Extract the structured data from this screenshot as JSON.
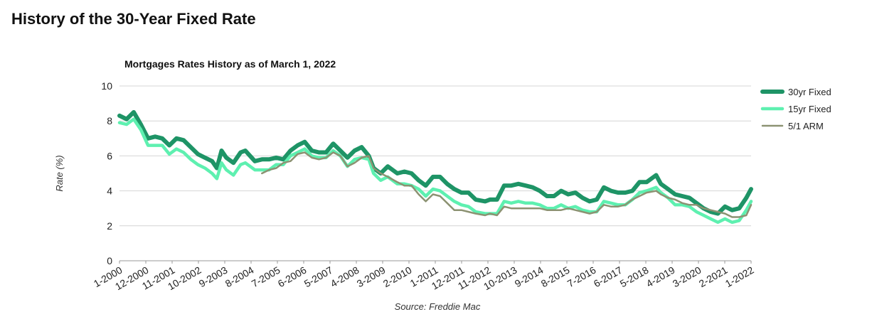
{
  "page": {
    "title": "History of the 30-Year Fixed Rate"
  },
  "chart_data": {
    "type": "line",
    "title": "Mortgages Rates History as of March 1, 2022",
    "ylabel": "Rate (%)",
    "xlabel": "",
    "source": "Source: Freddie Mac",
    "ylim": [
      0,
      10
    ],
    "yticks": [
      0,
      2,
      4,
      6,
      8,
      10
    ],
    "grid": true,
    "legend_position": "right",
    "x_tick_labels": [
      "1-2000",
      "12-2000",
      "11-2001",
      "10-2002",
      "9-2003",
      "8-2004",
      "7-2005",
      "6-2006",
      "5-2007",
      "4-2008",
      "3-2009",
      "2-2010",
      "1-2011",
      "12-2011",
      "11-2012",
      "10-2013",
      "9-2014",
      "8-2015",
      "7-2016",
      "6-2017",
      "5-2018",
      "4-2019",
      "3-2020",
      "2-2021",
      "1-2022"
    ],
    "x_range": [
      "2000-01",
      "2022-03"
    ],
    "series": [
      {
        "name": "30yr Fixed",
        "color": "#1e9466",
        "x": [
          "2000-01",
          "2000-04",
          "2000-07",
          "2000-10",
          "2001-01",
          "2001-04",
          "2001-07",
          "2001-10",
          "2002-01",
          "2002-04",
          "2002-07",
          "2002-10",
          "2003-01",
          "2003-04",
          "2003-06",
          "2003-08",
          "2003-10",
          "2004-01",
          "2004-04",
          "2004-06",
          "2004-10",
          "2005-01",
          "2005-04",
          "2005-07",
          "2005-10",
          "2006-01",
          "2006-04",
          "2006-07",
          "2006-10",
          "2007-01",
          "2007-04",
          "2007-07",
          "2007-10",
          "2008-01",
          "2008-04",
          "2008-07",
          "2008-10",
          "2008-12",
          "2009-03",
          "2009-06",
          "2009-10",
          "2010-01",
          "2010-04",
          "2010-07",
          "2010-10",
          "2011-01",
          "2011-04",
          "2011-07",
          "2011-10",
          "2012-01",
          "2012-04",
          "2012-07",
          "2012-11",
          "2013-01",
          "2013-04",
          "2013-07",
          "2013-10",
          "2014-01",
          "2014-04",
          "2014-07",
          "2014-10",
          "2015-01",
          "2015-04",
          "2015-07",
          "2015-10",
          "2016-01",
          "2016-04",
          "2016-07",
          "2016-10",
          "2017-01",
          "2017-04",
          "2017-07",
          "2017-10",
          "2018-01",
          "2018-04",
          "2018-07",
          "2018-11",
          "2019-01",
          "2019-04",
          "2019-07",
          "2019-10",
          "2020-01",
          "2020-04",
          "2020-07",
          "2020-10",
          "2021-01",
          "2021-04",
          "2021-07",
          "2021-10",
          "2022-01",
          "2022-03"
        ],
        "values": [
          8.3,
          8.1,
          8.5,
          7.8,
          7.0,
          7.1,
          7.0,
          6.6,
          7.0,
          6.9,
          6.5,
          6.1,
          5.9,
          5.7,
          5.3,
          6.3,
          5.9,
          5.6,
          6.2,
          6.3,
          5.7,
          5.8,
          5.8,
          5.9,
          5.8,
          6.3,
          6.6,
          6.8,
          6.3,
          6.2,
          6.2,
          6.7,
          6.3,
          5.9,
          6.3,
          6.5,
          6.0,
          5.3,
          5.0,
          5.4,
          5.0,
          5.1,
          5.0,
          4.6,
          4.3,
          4.8,
          4.8,
          4.4,
          4.1,
          3.9,
          3.9,
          3.5,
          3.4,
          3.5,
          3.5,
          4.3,
          4.3,
          4.4,
          4.3,
          4.2,
          4.0,
          3.7,
          3.7,
          4.0,
          3.8,
          3.9,
          3.6,
          3.4,
          3.5,
          4.2,
          4.0,
          3.9,
          3.9,
          4.0,
          4.5,
          4.5,
          4.9,
          4.4,
          4.1,
          3.8,
          3.7,
          3.6,
          3.3,
          3.0,
          2.8,
          2.7,
          3.1,
          2.9,
          3.0,
          3.6,
          4.1
        ]
      },
      {
        "name": "15yr Fixed",
        "color": "#5ef0b0",
        "x": [
          "2000-01",
          "2000-04",
          "2000-07",
          "2000-10",
          "2001-01",
          "2001-04",
          "2001-07",
          "2001-10",
          "2002-01",
          "2002-04",
          "2002-07",
          "2002-10",
          "2003-01",
          "2003-04",
          "2003-06",
          "2003-08",
          "2003-10",
          "2004-01",
          "2004-04",
          "2004-06",
          "2004-10",
          "2005-01",
          "2005-04",
          "2005-07",
          "2005-10",
          "2006-01",
          "2006-04",
          "2006-07",
          "2006-10",
          "2007-01",
          "2007-04",
          "2007-07",
          "2007-10",
          "2008-01",
          "2008-04",
          "2008-07",
          "2008-10",
          "2008-12",
          "2009-03",
          "2009-06",
          "2009-10",
          "2010-01",
          "2010-04",
          "2010-07",
          "2010-10",
          "2011-01",
          "2011-04",
          "2011-07",
          "2011-10",
          "2012-01",
          "2012-04",
          "2012-07",
          "2012-11",
          "2013-01",
          "2013-04",
          "2013-07",
          "2013-10",
          "2014-01",
          "2014-04",
          "2014-07",
          "2014-10",
          "2015-01",
          "2015-04",
          "2015-07",
          "2015-10",
          "2016-01",
          "2016-04",
          "2016-07",
          "2016-10",
          "2017-01",
          "2017-04",
          "2017-07",
          "2017-10",
          "2018-01",
          "2018-04",
          "2018-07",
          "2018-11",
          "2019-01",
          "2019-04",
          "2019-07",
          "2019-10",
          "2020-01",
          "2020-04",
          "2020-07",
          "2020-10",
          "2021-01",
          "2021-04",
          "2021-07",
          "2021-10",
          "2022-01",
          "2022-03"
        ],
        "values": [
          7.9,
          7.8,
          8.1,
          7.5,
          6.6,
          6.6,
          6.6,
          6.1,
          6.4,
          6.2,
          5.8,
          5.5,
          5.3,
          5.0,
          4.7,
          5.6,
          5.2,
          4.9,
          5.5,
          5.6,
          5.2,
          5.2,
          5.2,
          5.5,
          5.5,
          6.0,
          6.2,
          6.4,
          6.0,
          5.9,
          5.9,
          6.3,
          6.0,
          5.4,
          5.8,
          5.9,
          5.8,
          5.0,
          4.6,
          4.8,
          4.4,
          4.4,
          4.3,
          4.1,
          3.7,
          4.1,
          4.0,
          3.7,
          3.4,
          3.2,
          3.1,
          2.8,
          2.7,
          2.7,
          2.7,
          3.4,
          3.3,
          3.4,
          3.3,
          3.3,
          3.2,
          3.0,
          3.0,
          3.2,
          3.0,
          3.1,
          2.9,
          2.8,
          2.8,
          3.4,
          3.3,
          3.2,
          3.2,
          3.5,
          3.9,
          4.0,
          4.2,
          3.9,
          3.6,
          3.2,
          3.2,
          3.1,
          2.8,
          2.6,
          2.4,
          2.2,
          2.4,
          2.2,
          2.3,
          2.9,
          3.4
        ]
      },
      {
        "name": "5/1 ARM",
        "color": "#8c9272",
        "x": [
          "2005-01",
          "2005-04",
          "2005-07",
          "2005-10",
          "2006-01",
          "2006-04",
          "2006-07",
          "2006-10",
          "2007-01",
          "2007-04",
          "2007-07",
          "2007-10",
          "2008-01",
          "2008-04",
          "2008-07",
          "2008-10",
          "2008-12",
          "2009-03",
          "2009-06",
          "2009-10",
          "2010-01",
          "2010-04",
          "2010-07",
          "2010-10",
          "2011-01",
          "2011-04",
          "2011-07",
          "2011-10",
          "2012-01",
          "2012-04",
          "2012-07",
          "2012-11",
          "2013-01",
          "2013-04",
          "2013-07",
          "2013-10",
          "2014-01",
          "2014-04",
          "2014-07",
          "2014-10",
          "2015-01",
          "2015-04",
          "2015-07",
          "2015-10",
          "2016-01",
          "2016-04",
          "2016-07",
          "2016-10",
          "2017-01",
          "2017-04",
          "2017-07",
          "2017-10",
          "2018-01",
          "2018-04",
          "2018-07",
          "2018-11",
          "2019-01",
          "2019-04",
          "2019-07",
          "2019-10",
          "2020-01",
          "2020-04",
          "2020-07",
          "2020-10",
          "2021-01",
          "2021-04",
          "2021-07",
          "2021-10",
          "2022-01",
          "2022-03"
        ],
        "values": [
          5.0,
          5.2,
          5.3,
          5.6,
          5.7,
          6.1,
          6.2,
          5.9,
          5.8,
          5.9,
          6.2,
          6.0,
          5.4,
          5.6,
          5.9,
          6.0,
          5.3,
          5.0,
          4.8,
          4.5,
          4.3,
          4.3,
          3.8,
          3.4,
          3.8,
          3.7,
          3.3,
          2.9,
          2.9,
          2.8,
          2.7,
          2.6,
          2.7,
          2.6,
          3.1,
          3.0,
          3.0,
          3.0,
          3.0,
          3.0,
          2.9,
          2.9,
          2.9,
          3.0,
          2.9,
          2.8,
          2.7,
          2.8,
          3.2,
          3.1,
          3.1,
          3.2,
          3.5,
          3.7,
          3.9,
          4.0,
          3.8,
          3.6,
          3.5,
          3.3,
          3.2,
          3.2,
          3.0,
          2.9,
          2.8,
          2.7,
          2.5,
          2.5,
          2.6,
          3.2
        ]
      }
    ]
  }
}
